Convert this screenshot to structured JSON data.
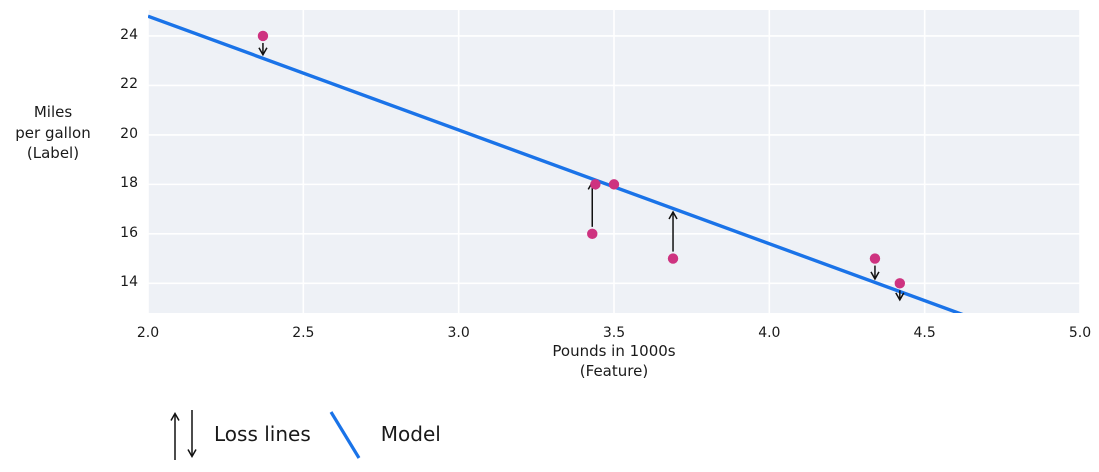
{
  "figure": {
    "ylabel": "Miles\nper gallon\n(Label)",
    "xlabel": "Pounds in 1000s\n(Feature)"
  },
  "legend": {
    "loss_label": "Loss lines",
    "model_label": "Model"
  },
  "chart_data": {
    "type": "scatter",
    "title": "",
    "xlabel": "Pounds in 1000s (Feature)",
    "ylabel": "Miles per gallon (Label)",
    "xlim": [
      2.0,
      5.0
    ],
    "ylim": [
      12.8,
      25.05
    ],
    "grid": true,
    "x_ticks": [
      {
        "value": 2.0,
        "label": "2.0"
      },
      {
        "value": 2.5,
        "label": "2.5"
      },
      {
        "value": 3.0,
        "label": "3.0"
      },
      {
        "value": 3.5,
        "label": "3.5"
      },
      {
        "value": 4.0,
        "label": "4.0"
      },
      {
        "value": 4.5,
        "label": "4.5"
      },
      {
        "value": 5.0,
        "label": "5.0"
      }
    ],
    "y_ticks": [
      {
        "value": 14,
        "label": "14"
      },
      {
        "value": 16,
        "label": "16"
      },
      {
        "value": 18,
        "label": "18"
      },
      {
        "value": 20,
        "label": "20"
      },
      {
        "value": 22,
        "label": "22"
      },
      {
        "value": 24,
        "label": "24"
      }
    ],
    "points": [
      {
        "x": 2.37,
        "y": 24
      },
      {
        "x": 3.44,
        "y": 18
      },
      {
        "x": 3.5,
        "y": 18
      },
      {
        "x": 3.43,
        "y": 16
      },
      {
        "x": 3.69,
        "y": 15
      },
      {
        "x": 4.34,
        "y": 15
      },
      {
        "x": 4.42,
        "y": 14
      }
    ],
    "model_line": {
      "slope": -4.6,
      "intercept": 34.0
    },
    "loss_lines": [
      {
        "x": 2.37,
        "from_y": 24,
        "direction": "down"
      },
      {
        "x": 3.43,
        "from_y": 16,
        "direction": "up"
      },
      {
        "x": 3.69,
        "from_y": 15,
        "direction": "up"
      },
      {
        "x": 4.34,
        "from_y": 15,
        "direction": "down"
      },
      {
        "x": 4.42,
        "from_y": 14,
        "direction": "down"
      }
    ],
    "colors": {
      "point": "#ce3380",
      "model_line": "#1a73e8",
      "plot_background": "#eef1f6",
      "gridline": "#ffffff",
      "loss_arrow": "#111111",
      "text": "#1a1a1a"
    },
    "legend_position": "bottom-left"
  }
}
